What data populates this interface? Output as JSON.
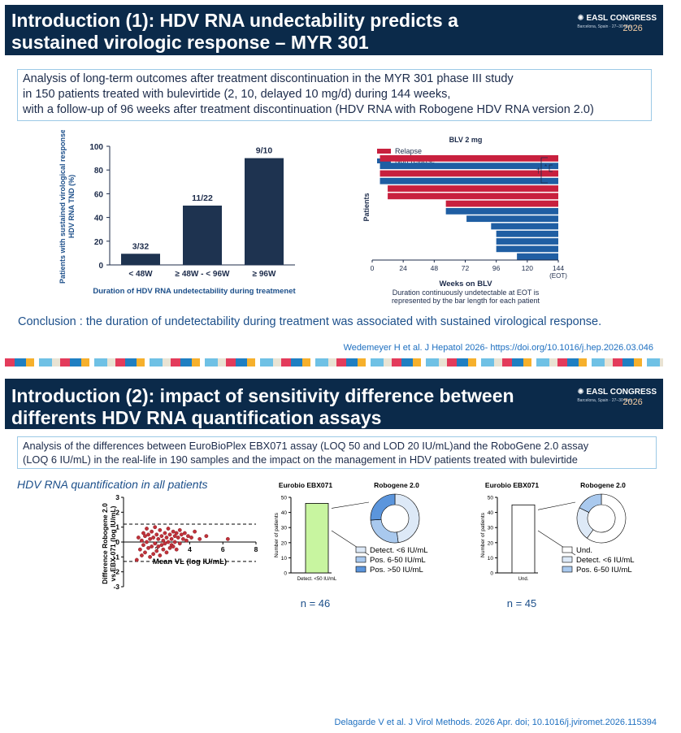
{
  "slide1": {
    "title_line1": "Introduction (1): HDV RNA undectability predicts a",
    "title_line2": "sustained virologic response – MYR 301",
    "logo": {
      "brand": "EASL CONGRESS",
      "year": "2026",
      "subtitle": "Barcelona, Spain · 27–30 May"
    },
    "info_lines": [
      "Analysis of long-term outcomes after treatment discontinuation in the MYR 301 phase III study",
      "in 150 patients treated with bulevirtide (2, 10, delayed 10 mg/d) during 144 weeks,",
      "with a follow-up of 96 weeks after treatment discontinuation (HDV RNA with Robogene HDV RNA version 2.0)"
    ],
    "conclusion": "Conclusion : the duration of undetectability during treatment was associated with sustained virological response.",
    "reference": "Wedemeyer H et al. J Hepatol 2026- https://doi.org/10.1016/j.hep.2026.03.046"
  },
  "slide2": {
    "title_line1": "Introduction (2): impact of sensitivity difference between",
    "title_line2": "differents HDV RNA quantification assays",
    "logo": {
      "brand": "EASL CONGRESS",
      "year": "2026",
      "subtitle": "Barcelona, Spain · 27–30 May"
    },
    "info_lines": [
      "Analysis of the differences between EuroBioPlex EBX071 assay (LOQ 50 and LOD 20 IU/mL)and the RoboGene 2.0 assay",
      "(LOQ 6 IU/mL) in the real-life in 190 samples and the impact on the management in HDV patients treated with bulevirtide"
    ],
    "section_title": "HDV RNA quantification in all patients",
    "reference": "Delagarde V et al. J Virol Methods. 2026 Apr. doi; 10.1016/j.jviromet.2026.115394"
  },
  "colors": {
    "navy": "#0b2a4a",
    "bar_dark": "#1e3350",
    "relapse": "#c8203e",
    "nonrelapse": "#1f5ea3",
    "scatter": "#c0313a",
    "green_bar": "#c8f5a0",
    "donut_light": "#dde9f7",
    "donut_mid": "#a9c9ee",
    "donut_dark": "#5b95dc"
  },
  "chart_data": [
    {
      "id": "svr-bars",
      "type": "bar",
      "categories": [
        "< 48W",
        "≥ 48W - < 96W",
        "≥ 96W"
      ],
      "values": [
        9.4,
        50,
        90
      ],
      "data_labels": [
        "3/32",
        "11/22",
        "9/10"
      ],
      "title": "",
      "ylabel_line1": "Patients with sustained virological response",
      "ylabel_line2": "HDV RNA TND (%)",
      "xlabel": "Duration of  HDV RNA undetectability during treatmenet",
      "ylim": [
        0,
        100
      ],
      "yticks": [
        0,
        20,
        40,
        60,
        80,
        100
      ]
    },
    {
      "id": "blv-bars",
      "type": "bar",
      "orientation": "horizontal",
      "title": "BLV 2 mg",
      "legend": [
        "Relapse",
        "Non-relapse"
      ],
      "legend_position": "top-left",
      "series": [
        {
          "name": "Relapse",
          "color_key": "relapse"
        },
        {
          "name": "Non-relapse",
          "color_key": "nonrelapse"
        }
      ],
      "bars_top_to_bottom": [
        {
          "value": 138,
          "group": "Relapse"
        },
        {
          "value": 138,
          "group": "Non-relapse"
        },
        {
          "value": 138,
          "group": "Relapse"
        },
        {
          "value": 138,
          "group": "Non-relapse"
        },
        {
          "value": 132,
          "group": "Relapse"
        },
        {
          "value": 132,
          "group": "Relapse"
        },
        {
          "value": 87,
          "group": "Relapse"
        },
        {
          "value": 87,
          "group": "Non-relapse"
        },
        {
          "value": 71,
          "group": "Non-relapse"
        },
        {
          "value": 52,
          "group": "Non-relapse"
        },
        {
          "value": 48,
          "group": "Non-relapse"
        },
        {
          "value": 48,
          "group": "Non-relapse"
        },
        {
          "value": 48,
          "group": "Non-relapse"
        },
        {
          "value": 32,
          "group": "Non-relapse"
        }
      ],
      "xticks": [
        "0",
        "24",
        "48",
        "72",
        "96",
        "120",
        "144"
      ],
      "xtick_note": "(EOT)",
      "xlim": [
        0,
        144
      ],
      "xlabel": "Weeks on BLV",
      "ylabel": "Patients",
      "annotations": [
        "†",
        "*"
      ],
      "caption_line1": "Duration continuously undetectable at EOT is",
      "caption_line2": "represented by the bar length for each patient"
    },
    {
      "id": "bland-altman",
      "type": "scatter",
      "xlabel": "Mean VL (log IU/mL)",
      "ylabel_line1": "Difference Robogene 2.0",
      "ylabel_line2": "vs EBX-071 (log IU/mL)",
      "xlim": [
        0,
        8
      ],
      "ylim": [
        -3,
        3
      ],
      "xticks": [
        2,
        4,
        6,
        8
      ],
      "yticks": [
        3,
        2,
        1,
        0,
        -1,
        -2,
        -3
      ],
      "reference_lines": [
        1.2,
        -1.3
      ],
      "points": [
        [
          0.8,
          -1.2
        ],
        [
          0.9,
          0.3
        ],
        [
          1.0,
          -0.5
        ],
        [
          1.1,
          0.1
        ],
        [
          1.1,
          -0.9
        ],
        [
          1.2,
          0.6
        ],
        [
          1.2,
          -0.2
        ],
        [
          1.3,
          0.4
        ],
        [
          1.3,
          -0.7
        ],
        [
          1.4,
          0.9
        ],
        [
          1.4,
          0.0
        ],
        [
          1.5,
          -0.4
        ],
        [
          1.5,
          0.5
        ],
        [
          1.6,
          -1.0
        ],
        [
          1.6,
          0.2
        ],
        [
          1.7,
          0.7
        ],
        [
          1.7,
          -0.3
        ],
        [
          1.8,
          0.3
        ],
        [
          1.8,
          -0.8
        ],
        [
          1.9,
          1.0
        ],
        [
          1.9,
          -0.1
        ],
        [
          2.0,
          0.5
        ],
        [
          2.0,
          -0.6
        ],
        [
          2.1,
          0.2
        ],
        [
          2.1,
          -0.3
        ],
        [
          2.2,
          0.8
        ],
        [
          2.2,
          -0.9
        ],
        [
          2.3,
          0.4
        ],
        [
          2.3,
          -0.2
        ],
        [
          2.4,
          0.1
        ],
        [
          2.4,
          -0.5
        ],
        [
          2.5,
          0.6
        ],
        [
          2.5,
          -0.1
        ],
        [
          2.6,
          0.3
        ],
        [
          2.6,
          -0.7
        ],
        [
          2.7,
          0.9
        ],
        [
          2.7,
          0.0
        ],
        [
          2.8,
          0.5
        ],
        [
          2.8,
          -0.4
        ],
        [
          2.9,
          0.2
        ],
        [
          2.9,
          -0.2
        ],
        [
          3.0,
          0.7
        ],
        [
          3.0,
          -0.3
        ],
        [
          3.1,
          0.4
        ],
        [
          3.1,
          0.0
        ],
        [
          3.2,
          0.6
        ],
        [
          3.2,
          -0.5
        ],
        [
          3.3,
          0.3
        ],
        [
          3.4,
          0.8
        ],
        [
          3.4,
          -0.1
        ],
        [
          3.5,
          0.5
        ],
        [
          3.6,
          0.2
        ],
        [
          3.7,
          0.6
        ],
        [
          3.8,
          0.1
        ],
        [
          3.9,
          0.4
        ],
        [
          4.1,
          0.3
        ],
        [
          4.3,
          0.7
        ],
        [
          4.6,
          0.2
        ],
        [
          5.0,
          0.4
        ],
        [
          6.3,
          0.2
        ]
      ]
    },
    {
      "id": "left-assay",
      "type": "bar",
      "title_left": "Eurobio EBX071",
      "title_right": "Robogene 2.0",
      "categories": [
        "Detect. <50 IU/mL"
      ],
      "values": [
        46
      ],
      "ylabel": "Number of patients",
      "ylim": [
        0,
        50
      ],
      "yticks": [
        0,
        10,
        20,
        30,
        40,
        50
      ],
      "n_label": "n = 46",
      "donut": {
        "slices": [
          {
            "label": "Detect. <6 IU/mL",
            "value": 22,
            "color_key": "donut_light"
          },
          {
            "label": "Pos. 6-50 IU/mL",
            "value": 12,
            "color_key": "donut_mid"
          },
          {
            "label": "Pos. >50 IU/mL",
            "value": 12,
            "color_key": "donut_dark"
          }
        ]
      }
    },
    {
      "id": "right-assay",
      "type": "bar",
      "title_left": "Eurobio EBX071",
      "title_right": "Robogene 2.0",
      "categories": [
        "Und."
      ],
      "values": [
        45
      ],
      "ylabel": "Number of patients",
      "ylim": [
        0,
        50
      ],
      "yticks": [
        0,
        10,
        20,
        30,
        40,
        50
      ],
      "n_label": "n = 45",
      "donut": {
        "slices": [
          {
            "label": "Und.",
            "value": 27,
            "color_key": "white"
          },
          {
            "label": "Detect. <6 IU/mL",
            "value": 10,
            "color_key": "donut_light"
          },
          {
            "label": "Pos. 6-50 IU/mL",
            "value": 8,
            "color_key": "donut_mid"
          }
        ]
      }
    }
  ]
}
